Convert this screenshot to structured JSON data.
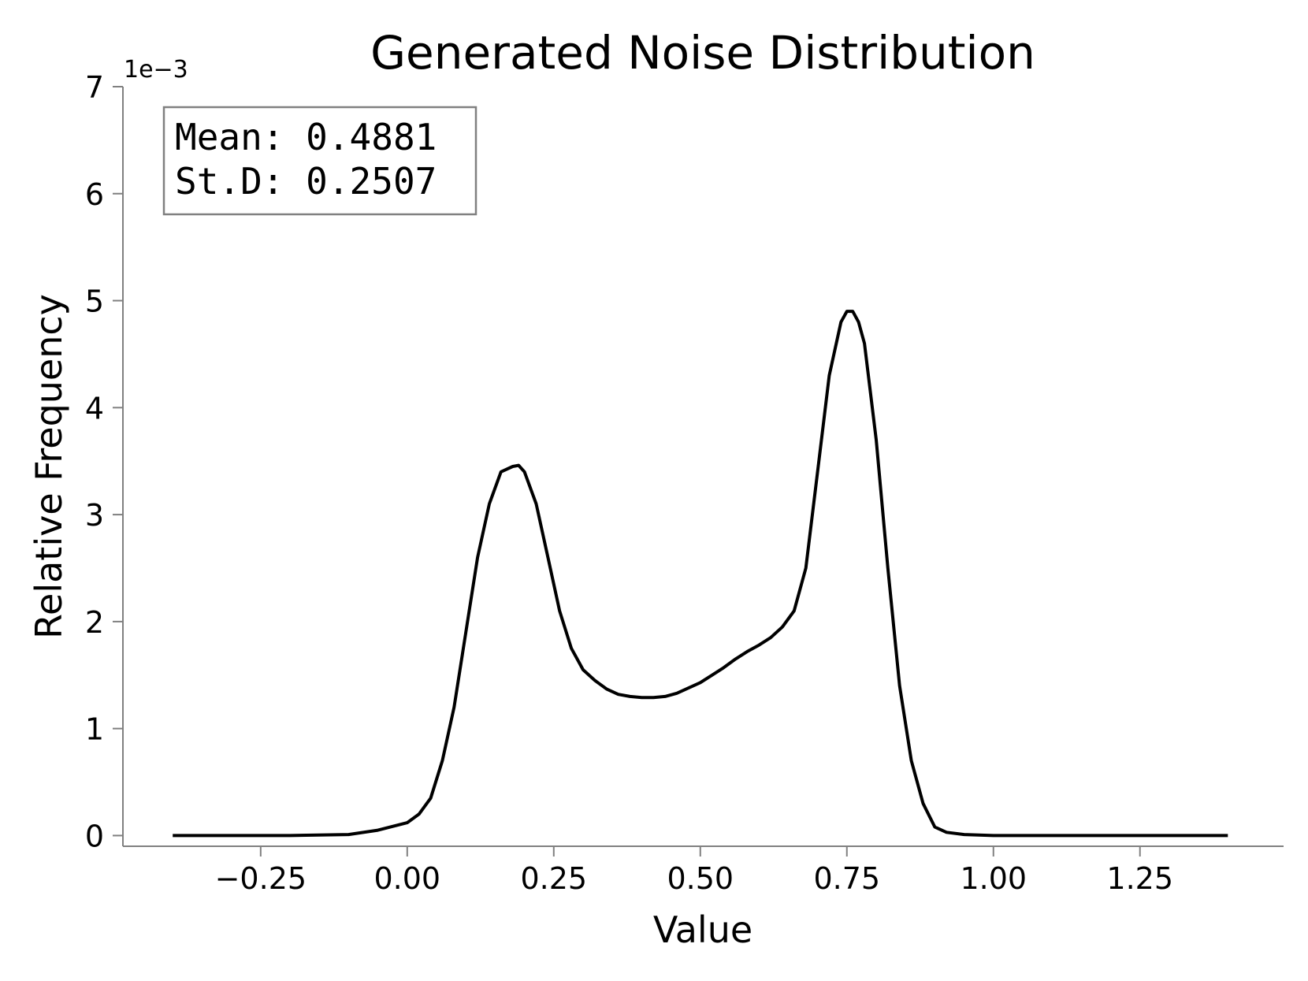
{
  "chart_data": {
    "type": "line",
    "title": "Generated Noise Distribution",
    "xlabel": "Value",
    "ylabel": "Relative Frequency",
    "y_offset_label": "1e−3",
    "xlim": [
      -0.485,
      1.495
    ],
    "ylim": [
      -0.0001,
      0.007
    ],
    "x_ticks": [
      -0.25,
      0.0,
      0.25,
      0.5,
      0.75,
      1.0,
      1.25
    ],
    "x_tick_labels": [
      "−0.25",
      "0.00",
      "0.25",
      "0.50",
      "0.75",
      "1.00",
      "1.25"
    ],
    "y_ticks": [
      0,
      0.001,
      0.002,
      0.003,
      0.004,
      0.005,
      0.006,
      0.007
    ],
    "y_tick_labels": [
      "0",
      "1",
      "2",
      "3",
      "4",
      "5",
      "6",
      "7"
    ],
    "grid": false,
    "line_color": "#000000",
    "axis_color": "#808080",
    "stats_box": {
      "position": "top-left",
      "lines": [
        "Mean: 0.4881",
        "St.D: 0.2507"
      ]
    },
    "series": [
      {
        "x": [
          -0.4,
          -0.3,
          -0.2,
          -0.1,
          -0.05,
          0.0,
          0.02,
          0.04,
          0.06,
          0.08,
          0.1,
          0.12,
          0.14,
          0.16,
          0.18,
          0.19,
          0.2,
          0.22,
          0.24,
          0.26,
          0.28,
          0.3,
          0.32,
          0.34,
          0.36,
          0.38,
          0.4,
          0.42,
          0.44,
          0.46,
          0.48,
          0.5,
          0.52,
          0.54,
          0.56,
          0.58,
          0.6,
          0.62,
          0.64,
          0.66,
          0.68,
          0.7,
          0.72,
          0.74,
          0.75,
          0.76,
          0.77,
          0.78,
          0.8,
          0.82,
          0.84,
          0.86,
          0.88,
          0.9,
          0.92,
          0.95,
          1.0,
          1.1,
          1.25,
          1.4
        ],
        "y": [
          0.0,
          0.0,
          0.0,
          1e-05,
          5e-05,
          0.00012,
          0.0002,
          0.00035,
          0.0007,
          0.0012,
          0.0019,
          0.0026,
          0.0031,
          0.0034,
          0.00345,
          0.00346,
          0.0034,
          0.0031,
          0.0026,
          0.0021,
          0.00175,
          0.00155,
          0.00145,
          0.00137,
          0.00132,
          0.0013,
          0.00129,
          0.00129,
          0.0013,
          0.00133,
          0.00138,
          0.00143,
          0.0015,
          0.00157,
          0.00165,
          0.00172,
          0.00178,
          0.00185,
          0.00195,
          0.0021,
          0.0025,
          0.0034,
          0.0043,
          0.0048,
          0.0049,
          0.0049,
          0.0048,
          0.0046,
          0.0037,
          0.0025,
          0.0014,
          0.0007,
          0.0003,
          8e-05,
          3e-05,
          1e-05,
          0.0,
          0.0,
          0.0,
          0.0
        ]
      }
    ]
  }
}
